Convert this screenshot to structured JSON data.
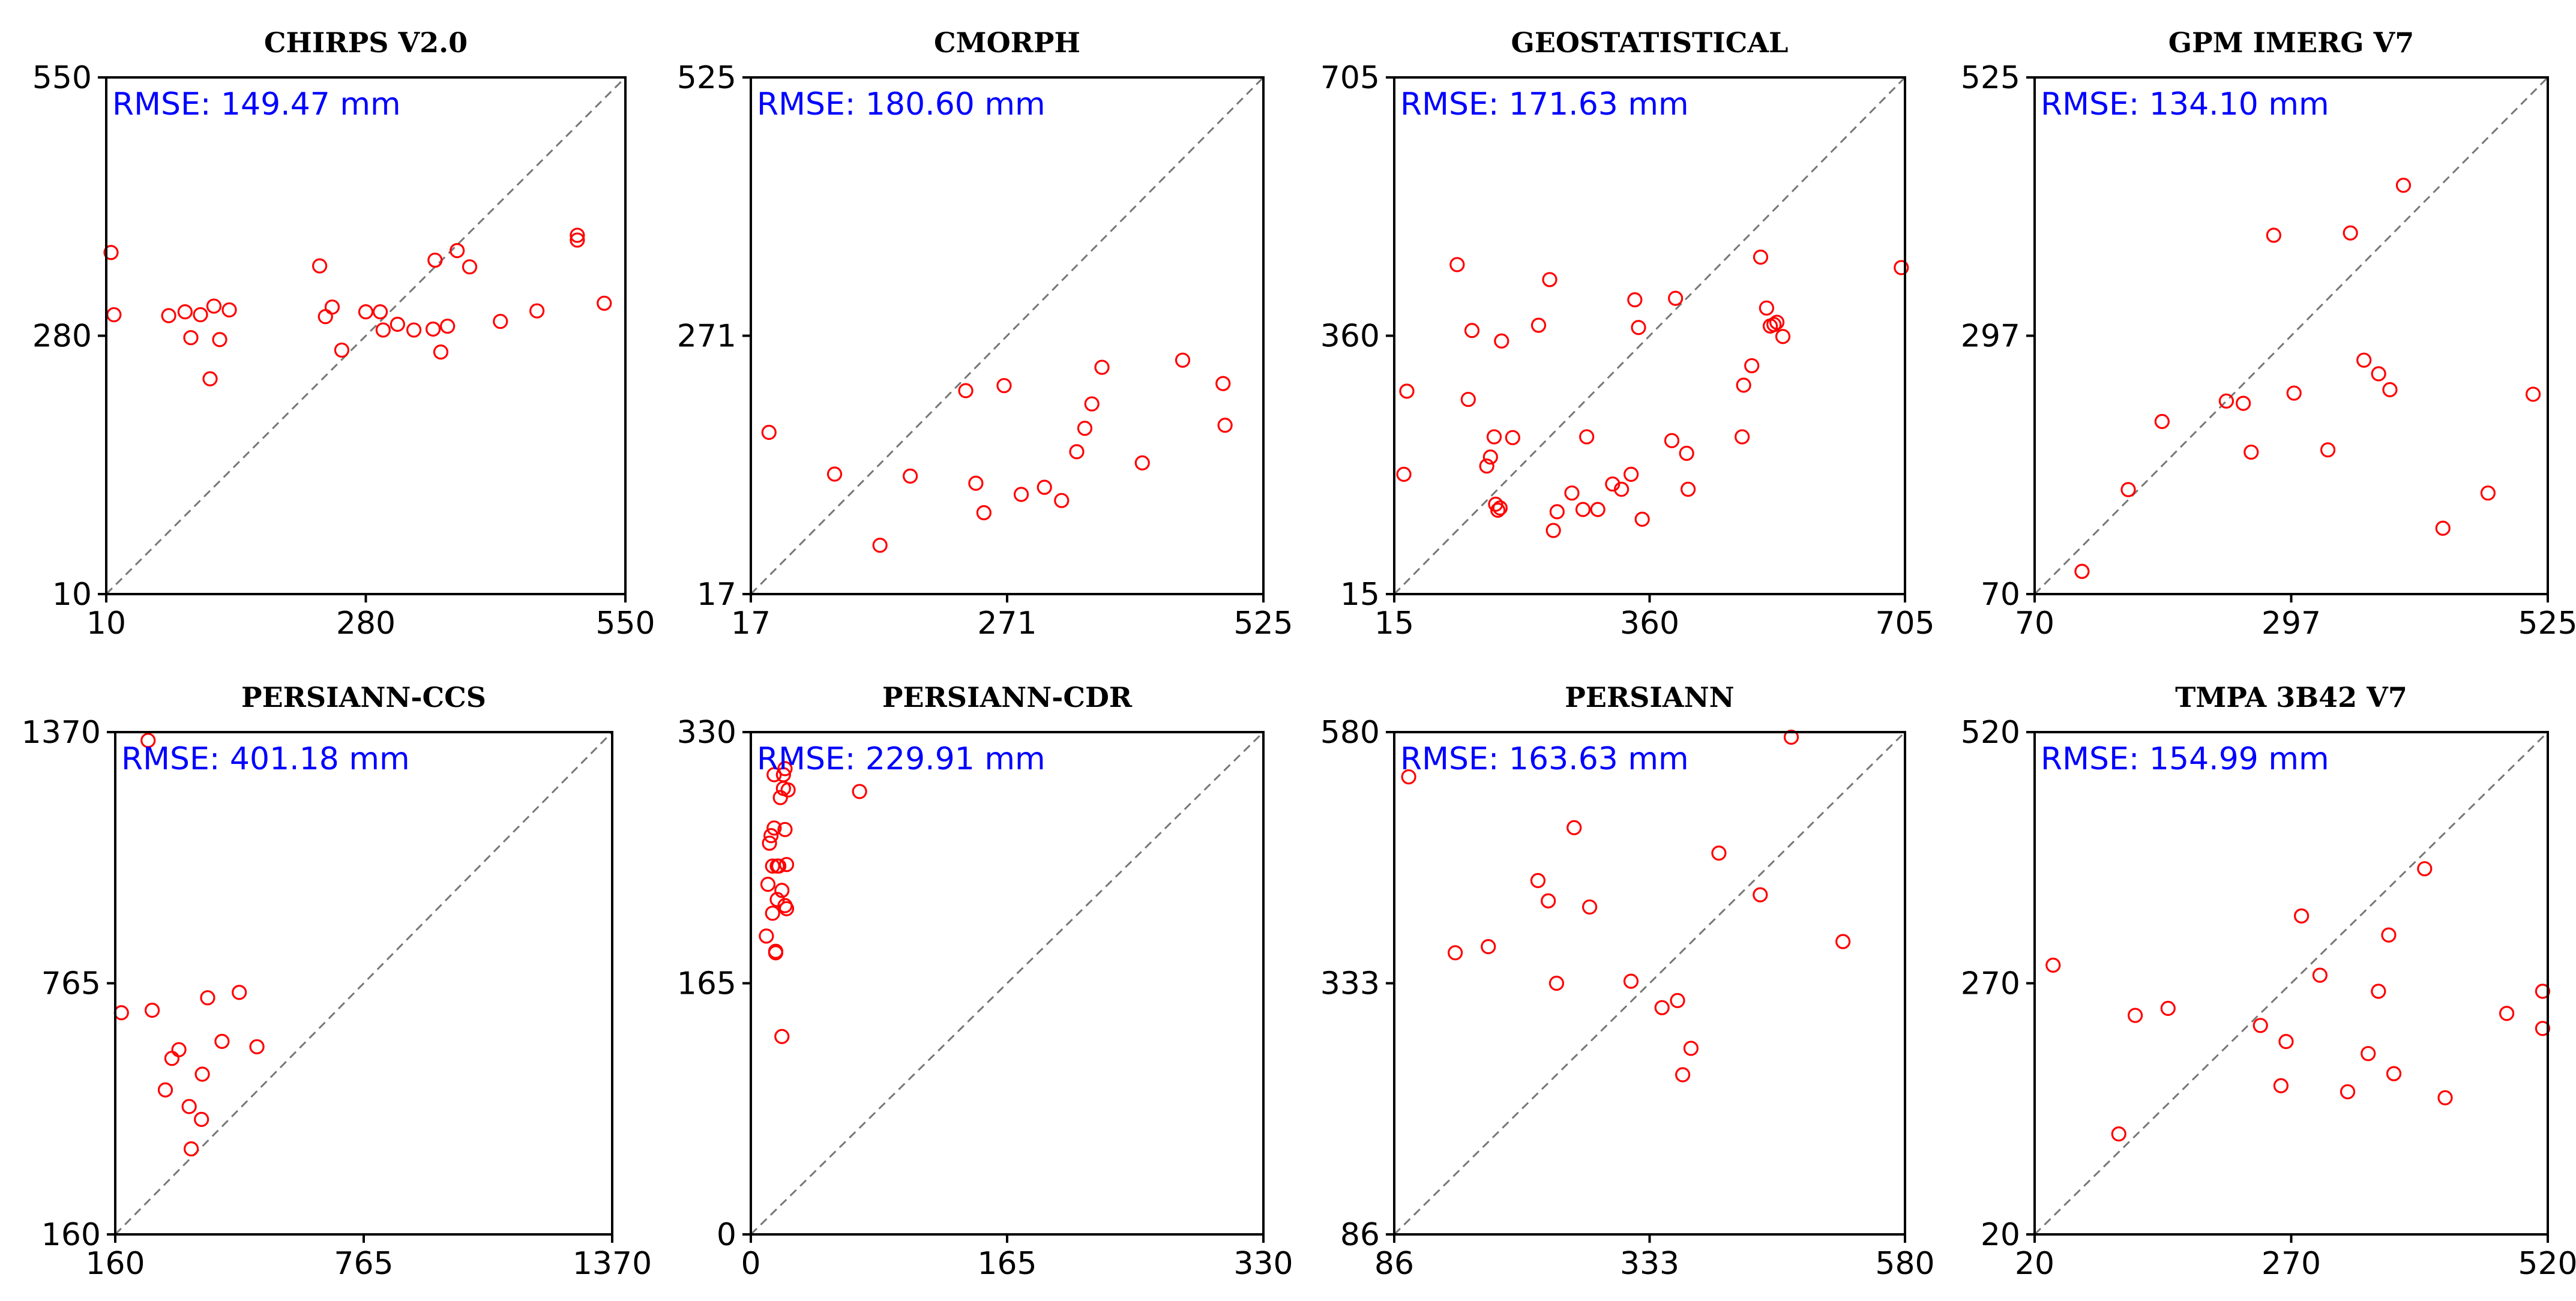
{
  "chart_data": [
    {
      "type": "scatter",
      "title": "CHIRPS V2.0",
      "rmse": "RMSE: 149.47 mm",
      "xlim": [
        10,
        550
      ],
      "ylim": [
        10,
        550
      ],
      "xticks": [
        "10",
        "280",
        "550"
      ],
      "yticks": [
        "10",
        "280",
        "550"
      ],
      "points": [
        [
          15,
          367
        ],
        [
          18,
          302
        ],
        [
          75,
          301
        ],
        [
          92,
          305
        ],
        [
          98,
          278
        ],
        [
          108,
          302
        ],
        [
          118,
          235
        ],
        [
          122,
          311
        ],
        [
          128,
          276
        ],
        [
          138,
          307
        ],
        [
          232,
          353
        ],
        [
          238,
          300
        ],
        [
          245,
          310
        ],
        [
          255,
          265
        ],
        [
          280,
          305
        ],
        [
          295,
          305
        ],
        [
          298,
          286
        ],
        [
          313,
          292
        ],
        [
          330,
          286
        ],
        [
          352,
          359
        ],
        [
          350,
          287
        ],
        [
          358,
          263
        ],
        [
          365,
          290
        ],
        [
          375,
          369
        ],
        [
          388,
          352
        ],
        [
          420,
          295
        ],
        [
          458,
          306
        ],
        [
          500,
          385
        ],
        [
          500,
          380
        ],
        [
          528,
          314
        ]
      ]
    },
    {
      "type": "scatter",
      "title": "CMORPH",
      "rmse": "RMSE: 180.60 mm",
      "xlim": [
        17,
        525
      ],
      "ylim": [
        17,
        525
      ],
      "xticks": [
        "17",
        "271",
        "525"
      ],
      "yticks": [
        "17",
        "271",
        "525"
      ],
      "points": [
        [
          35,
          176
        ],
        [
          100,
          135
        ],
        [
          145,
          65
        ],
        [
          175,
          133
        ],
        [
          230,
          217
        ],
        [
          240,
          126
        ],
        [
          248,
          97
        ],
        [
          268,
          222
        ],
        [
          285,
          115
        ],
        [
          308,
          122
        ],
        [
          325,
          109
        ],
        [
          340,
          157
        ],
        [
          348,
          180
        ],
        [
          355,
          204
        ],
        [
          365,
          240
        ],
        [
          405,
          146
        ],
        [
          445,
          247
        ],
        [
          485,
          224
        ],
        [
          487,
          183
        ]
      ]
    },
    {
      "type": "scatter",
      "title": "GEOSTATISTICAL",
      "rmse": "RMSE: 171.63 mm",
      "xlim": [
        15,
        705
      ],
      "ylim": [
        15,
        705
      ],
      "xticks": [
        "15",
        "360",
        "705"
      ],
      "yticks": [
        "15",
        "360",
        "705"
      ],
      "points": [
        [
          28,
          175
        ],
        [
          32,
          286
        ],
        [
          100,
          455
        ],
        [
          115,
          275
        ],
        [
          120,
          367
        ],
        [
          140,
          186
        ],
        [
          145,
          198
        ],
        [
          150,
          225
        ],
        [
          152,
          135
        ],
        [
          155,
          127
        ],
        [
          158,
          130
        ],
        [
          160,
          353
        ],
        [
          175,
          224
        ],
        [
          210,
          374
        ],
        [
          225,
          435
        ],
        [
          230,
          100
        ],
        [
          235,
          125
        ],
        [
          255,
          150
        ],
        [
          270,
          128
        ],
        [
          275,
          225
        ],
        [
          290,
          128
        ],
        [
          310,
          162
        ],
        [
          322,
          155
        ],
        [
          335,
          175
        ],
        [
          340,
          408
        ],
        [
          345,
          371
        ],
        [
          350,
          115
        ],
        [
          390,
          220
        ],
        [
          395,
          410
        ],
        [
          410,
          203
        ],
        [
          412,
          155
        ],
        [
          485,
          225
        ],
        [
          487,
          294
        ],
        [
          498,
          320
        ],
        [
          510,
          465
        ],
        [
          518,
          397
        ],
        [
          523,
          373
        ],
        [
          528,
          375
        ],
        [
          532,
          378
        ],
        [
          540,
          359
        ],
        [
          700,
          451
        ]
      ]
    },
    {
      "type": "scatter",
      "title": "GPM IMERG V7",
      "rmse": "RMSE: 134.10 mm",
      "xlim": [
        70,
        525
      ],
      "ylim": [
        70,
        525
      ],
      "xticks": [
        "70",
        "297",
        "525"
      ],
      "yticks": [
        "70",
        "297",
        "525"
      ],
      "points": [
        [
          112,
          90
        ],
        [
          153,
          162
        ],
        [
          183,
          222
        ],
        [
          240,
          240
        ],
        [
          255,
          238
        ],
        [
          262,
          195
        ],
        [
          282,
          386
        ],
        [
          300,
          247
        ],
        [
          330,
          197
        ],
        [
          350,
          388
        ],
        [
          362,
          276
        ],
        [
          375,
          264
        ],
        [
          385,
          250
        ],
        [
          397,
          430
        ],
        [
          432,
          128
        ],
        [
          472,
          159
        ],
        [
          512,
          246
        ]
      ]
    },
    {
      "type": "scatter",
      "title": "PERSIANN-CCS",
      "rmse": "RMSE: 401.18 mm",
      "xlim": [
        160,
        1370
      ],
      "ylim": [
        160,
        1370
      ],
      "xticks": [
        "160",
        "765",
        "1370"
      ],
      "yticks": [
        "160",
        "765",
        "1370"
      ],
      "points": [
        [
          175,
          694
        ],
        [
          240,
          1350
        ],
        [
          250,
          700
        ],
        [
          282,
          508
        ],
        [
          298,
          584
        ],
        [
          315,
          605
        ],
        [
          340,
          468
        ],
        [
          345,
          366
        ],
        [
          370,
          437
        ],
        [
          372,
          546
        ],
        [
          385,
          730
        ],
        [
          420,
          625
        ],
        [
          462,
          743
        ],
        [
          505,
          612
        ]
      ]
    },
    {
      "type": "scatter",
      "title": "PERSIANN-CDR",
      "rmse": "RMSE: 229.91 mm",
      "xlim": [
        0,
        330
      ],
      "ylim": [
        0,
        330
      ],
      "xticks": [
        "0",
        "165",
        "330"
      ],
      "yticks": [
        "0",
        "165",
        "330"
      ],
      "points": [
        [
          10,
          196
        ],
        [
          11,
          230
        ],
        [
          12,
          257
        ],
        [
          13,
          262
        ],
        [
          14,
          211
        ],
        [
          14,
          242
        ],
        [
          15,
          267
        ],
        [
          15,
          302
        ],
        [
          16,
          185
        ],
        [
          16,
          186
        ],
        [
          17,
          220
        ],
        [
          17,
          242
        ],
        [
          18,
          242
        ],
        [
          19,
          287
        ],
        [
          20,
          130
        ],
        [
          20,
          226
        ],
        [
          21,
          293
        ],
        [
          21,
          302
        ],
        [
          22,
          266
        ],
        [
          22,
          216
        ],
        [
          22,
          306
        ],
        [
          23,
          243
        ],
        [
          23,
          214
        ],
        [
          24,
          292
        ],
        [
          70,
          291
        ]
      ]
    },
    {
      "type": "scatter",
      "title": "PERSIANN",
      "rmse": "RMSE: 163.63 mm",
      "xlim": [
        86,
        580
      ],
      "ylim": [
        86,
        580
      ],
      "xticks": [
        "86",
        "333",
        "580"
      ],
      "yticks": [
        "86",
        "333",
        "580"
      ],
      "points": [
        [
          100,
          536
        ],
        [
          145,
          363
        ],
        [
          177,
          369
        ],
        [
          225,
          434
        ],
        [
          235,
          414
        ],
        [
          243,
          333
        ],
        [
          260,
          486
        ],
        [
          275,
          408
        ],
        [
          315,
          335
        ],
        [
          345,
          309
        ],
        [
          360,
          316
        ],
        [
          365,
          243
        ],
        [
          373,
          269
        ],
        [
          400,
          461
        ],
        [
          440,
          420
        ],
        [
          470,
          575
        ],
        [
          520,
          374
        ]
      ]
    },
    {
      "type": "scatter",
      "title": "TMPA 3B42 V7",
      "rmse": "RMSE: 154.99 mm",
      "xlim": [
        20,
        520
      ],
      "ylim": [
        20,
        520
      ],
      "xticks": [
        "20",
        "270",
        "520"
      ],
      "yticks": [
        "20",
        "270",
        "520"
      ],
      "points": [
        [
          38,
          288
        ],
        [
          102,
          120
        ],
        [
          118,
          238
        ],
        [
          150,
          245
        ],
        [
          240,
          228
        ],
        [
          260,
          168
        ],
        [
          265,
          212
        ],
        [
          280,
          337
        ],
        [
          298,
          278
        ],
        [
          325,
          162
        ],
        [
          345,
          200
        ],
        [
          355,
          262
        ],
        [
          365,
          318
        ],
        [
          370,
          180
        ],
        [
          400,
          384
        ],
        [
          420,
          156
        ],
        [
          480,
          240
        ],
        [
          515,
          262
        ],
        [
          515,
          225
        ]
      ]
    }
  ]
}
